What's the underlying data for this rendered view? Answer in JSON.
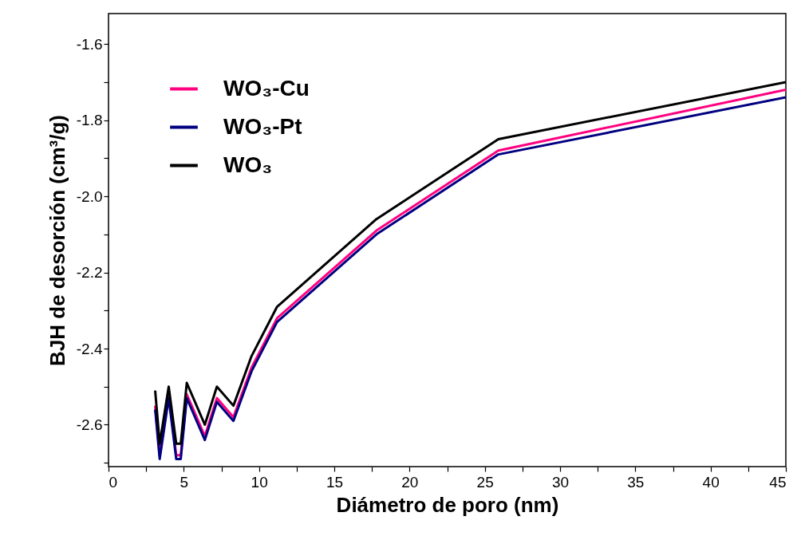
{
  "chart_data": {
    "type": "line",
    "xlabel": "Diámetro de poro (nm)",
    "ylabel": "BJH de desorción (cm³/g)",
    "x": [
      3.1,
      3.4,
      4.0,
      4.5,
      4.8,
      5.2,
      6.4,
      7.2,
      8.3,
      9.5,
      11.2,
      17.8,
      25.9,
      45
    ],
    "series": [
      {
        "name": "WO₃-Cu",
        "color": "#ff0080",
        "values": [
          -2.55,
          -2.68,
          -2.52,
          -2.68,
          -2.68,
          -2.52,
          -2.63,
          -2.53,
          -2.58,
          -2.45,
          -2.32,
          -2.09,
          -1.88,
          -1.72
        ]
      },
      {
        "name": "WO₃-Pt",
        "color": "#000080",
        "values": [
          -2.56,
          -2.69,
          -2.53,
          -2.69,
          -2.69,
          -2.53,
          -2.64,
          -2.54,
          -2.59,
          -2.46,
          -2.33,
          -2.1,
          -1.89,
          -1.74
        ]
      },
      {
        "name": "WO₃",
        "color": "#000000",
        "values": [
          -2.51,
          -2.65,
          -2.5,
          -2.65,
          -2.65,
          -2.49,
          -2.6,
          -2.5,
          -2.55,
          -2.42,
          -2.29,
          -2.06,
          -1.85,
          -1.7
        ]
      }
    ],
    "xlim": [
      0,
      45
    ],
    "xticks": [
      0,
      {
        "value": 2.5,
        "label": null
      },
      5,
      {
        "value": 7.5,
        "label": null
      },
      10,
      {
        "value": 12.5,
        "label": null
      },
      15,
      {
        "value": 17.5,
        "label": null
      },
      20,
      {
        "value": 22.5,
        "label": null
      },
      25,
      {
        "value": 27.5,
        "label": null
      },
      30,
      {
        "value": 32.5,
        "label": null
      },
      35,
      {
        "value": 37.5,
        "label": null
      },
      40,
      {
        "value": 42.5,
        "label": null
      },
      45
    ],
    "ylim": [
      -2.71,
      -1.52
    ],
    "yticks": [
      {
        "value": -2.7,
        "label": null
      },
      -2.6,
      {
        "value": -2.5,
        "label": null
      },
      -2.4,
      {
        "value": -2.3,
        "label": null
      },
      -2.2,
      {
        "value": -2.1,
        "label": null
      },
      {
        "value": -2,
        "label": "-2.0"
      },
      {
        "value": -1.9,
        "label": null
      },
      -1.8,
      {
        "value": -1.7,
        "label": null
      },
      -1.6
    ],
    "legend": "top left",
    "grid": false,
    "line_style": "solid",
    "marker": "none"
  }
}
